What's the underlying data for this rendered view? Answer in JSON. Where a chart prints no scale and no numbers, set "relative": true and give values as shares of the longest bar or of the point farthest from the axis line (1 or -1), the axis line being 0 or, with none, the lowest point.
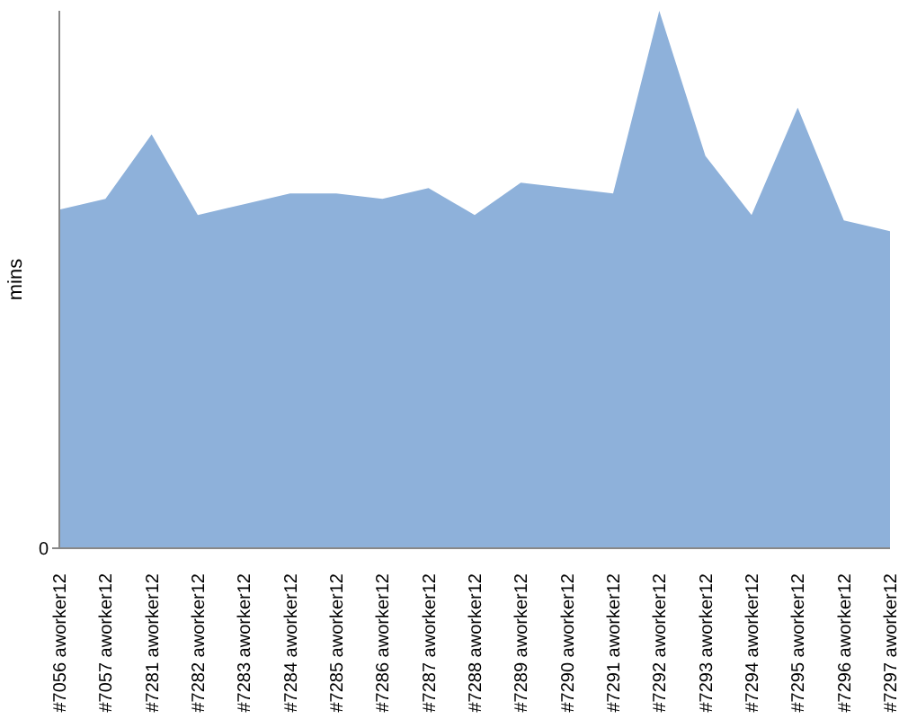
{
  "chart_data": {
    "type": "area",
    "ylabel": "mins",
    "relative": true,
    "annotations": [
      "0"
    ],
    "categories": [
      "#7056 aworker12",
      "#7057 aworker12",
      "#7281 aworker12",
      "#7282 aworker12",
      "#7283 aworker12",
      "#7284 aworker12",
      "#7285 aworker12",
      "#7286 aworker12",
      "#7287 aworker12",
      "#7288 aworker12",
      "#7289 aworker12",
      "#7290 aworker12",
      "#7291 aworker12",
      "#7292 aworker12",
      "#7293 aworker12",
      "#7294 aworker12",
      "#7295 aworker12",
      "#7296 aworker12",
      "#7297 aworker12"
    ],
    "values": [
      0.63,
      0.65,
      0.77,
      0.62,
      0.64,
      0.66,
      0.66,
      0.65,
      0.67,
      0.62,
      0.68,
      0.67,
      0.66,
      1,
      0.73,
      0.62,
      0.82,
      0.61,
      0.59
    ],
    "color": "#8eb1da",
    "grid": false,
    "legend": false
  }
}
